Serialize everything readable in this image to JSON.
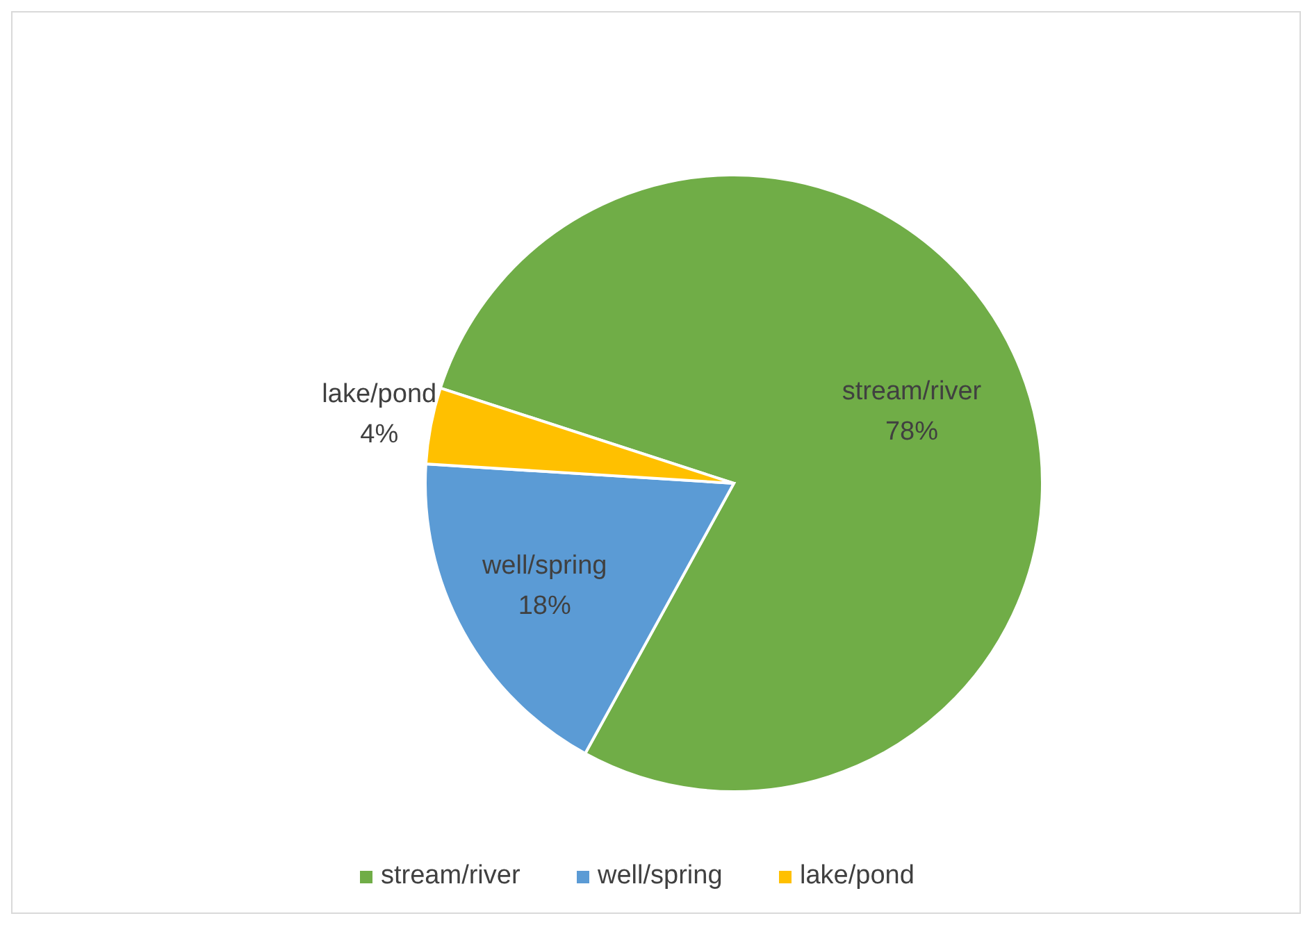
{
  "chart_data": {
    "type": "pie",
    "categories": [
      "stream/river",
      "well/spring",
      "lake/pond"
    ],
    "values": [
      78,
      18,
      4
    ],
    "colors": [
      "#70ad47",
      "#5b9bd5",
      "#ffc000"
    ],
    "value_labels": [
      "78%",
      "18%",
      "4%"
    ],
    "legend": "bottom"
  }
}
